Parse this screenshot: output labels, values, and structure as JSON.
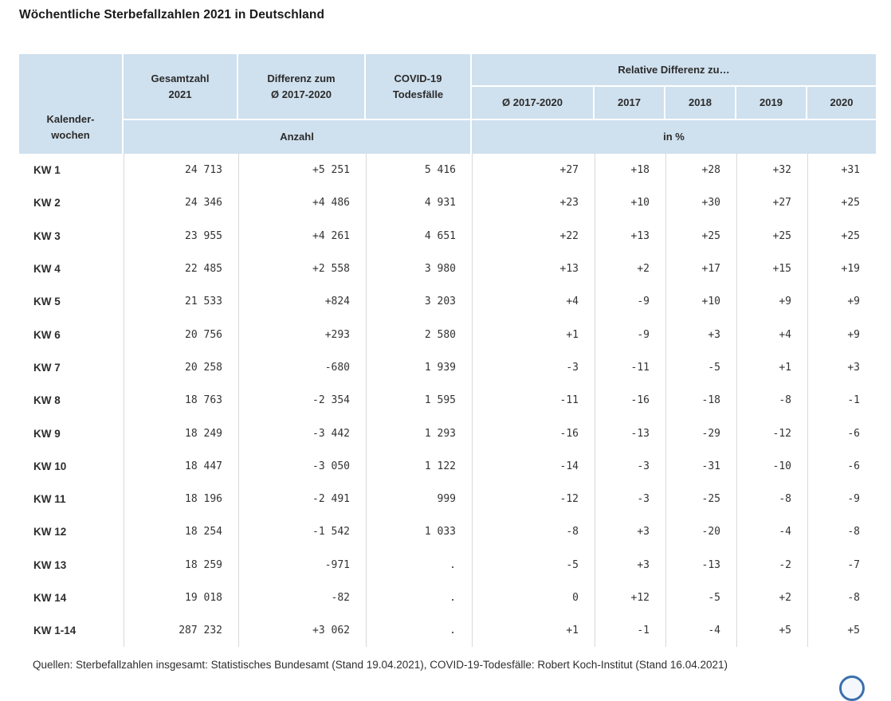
{
  "title": "Wöchentliche Sterbefallzahlen 2021 in Deutschland",
  "colors": {
    "header_bg": "#cfe0ee",
    "body_divider": "#d9d9d9",
    "text": "#333333",
    "fab_blue": "#3a70ad"
  },
  "table": {
    "header": {
      "kalenderwochen": [
        "Kalender-",
        "wochen"
      ],
      "gesamtzahl": [
        "Gesamtzahl",
        "2021"
      ],
      "differenz": [
        "Differenz zum",
        "Ø 2017-2020"
      ],
      "covid": [
        "COVID-19",
        "Todesfälle"
      ],
      "relative": "Relative Differenz zu…",
      "years": [
        "Ø 2017-2020",
        "2017",
        "2018",
        "2019",
        "2020"
      ],
      "anzahl": "Anzahl",
      "in_percent": "in %"
    },
    "rows": [
      {
        "label": "KW 1",
        "cells": [
          "24 713",
          "+5 251",
          "5 416",
          "+27",
          "+18",
          "+28",
          "+32",
          "+31"
        ]
      },
      {
        "label": "KW 2",
        "cells": [
          "24 346",
          "+4 486",
          "4 931",
          "+23",
          "+10",
          "+30",
          "+27",
          "+25"
        ]
      },
      {
        "label": "KW 3",
        "cells": [
          "23 955",
          "+4 261",
          "4 651",
          "+22",
          "+13",
          "+25",
          "+25",
          "+25"
        ]
      },
      {
        "label": "KW 4",
        "cells": [
          "22 485",
          "+2 558",
          "3 980",
          "+13",
          "+2",
          "+17",
          "+15",
          "+19"
        ]
      },
      {
        "label": "KW 5",
        "cells": [
          "21 533",
          "+824",
          "3 203",
          "+4",
          "-9",
          "+10",
          "+9",
          "+9"
        ]
      },
      {
        "label": "KW 6",
        "cells": [
          "20 756",
          "+293",
          "2 580",
          "+1",
          "-9",
          "+3",
          "+4",
          "+9"
        ]
      },
      {
        "label": "KW 7",
        "cells": [
          "20 258",
          "-680",
          "1 939",
          "-3",
          "-11",
          "-5",
          "+1",
          "+3"
        ]
      },
      {
        "label": "KW 8",
        "cells": [
          "18 763",
          "-2 354",
          "1 595",
          "-11",
          "-16",
          "-18",
          "-8",
          "-1"
        ]
      },
      {
        "label": "KW 9",
        "cells": [
          "18 249",
          "-3 442",
          "1 293",
          "-16",
          "-13",
          "-29",
          "-12",
          "-6"
        ]
      },
      {
        "label": "KW 10",
        "cells": [
          "18 447",
          "-3 050",
          "1 122",
          "-14",
          "-3",
          "-31",
          "-10",
          "-6"
        ]
      },
      {
        "label": "KW 11",
        "cells": [
          "18 196",
          "-2 491",
          "999",
          "-12",
          "-3",
          "-25",
          "-8",
          "-9"
        ]
      },
      {
        "label": "KW 12",
        "cells": [
          "18 254",
          "-1 542",
          "1 033",
          "-8",
          "+3",
          "-20",
          "-4",
          "-8"
        ]
      },
      {
        "label": "KW 13",
        "cells": [
          "18 259",
          "-971",
          ".",
          "-5",
          "+3",
          "-13",
          "-2",
          "-7"
        ]
      },
      {
        "label": "KW 14",
        "cells": [
          "19 018",
          "-82",
          ".",
          "0",
          "+12",
          "-5",
          "+2",
          "-8"
        ]
      },
      {
        "label": "KW 1-14",
        "cells": [
          "287 232",
          "+3 062",
          ".",
          "+1",
          "-1",
          "-4",
          "+5",
          "+5"
        ]
      }
    ]
  },
  "source_note": "Quellen: Sterbefallzahlen insgesamt: Statistisches Bundesamt (Stand 19.04.2021), COVID-19-Todesfälle: Robert Koch-Institut (Stand 16.04.2021)",
  "chart_data": {
    "type": "table",
    "title": "Wöchentliche Sterbefallzahlen 2021 in Deutschland",
    "columns": [
      "Kalenderwochen",
      "Gesamtzahl 2021 (Anzahl)",
      "Differenz zum Ø 2017-2020 (Anzahl)",
      "COVID-19 Todesfälle (Anzahl)",
      "Relative Differenz zu Ø 2017-2020 (in %)",
      "Relative Differenz zu 2017 (in %)",
      "Relative Differenz zu 2018 (in %)",
      "Relative Differenz zu 2019 (in %)",
      "Relative Differenz zu 2020 (in %)"
    ],
    "rows": [
      [
        "KW 1",
        24713,
        5251,
        5416,
        27,
        18,
        28,
        32,
        31
      ],
      [
        "KW 2",
        24346,
        4486,
        4931,
        23,
        10,
        30,
        27,
        25
      ],
      [
        "KW 3",
        23955,
        4261,
        4651,
        22,
        13,
        25,
        25,
        25
      ],
      [
        "KW 4",
        22485,
        2558,
        3980,
        13,
        2,
        17,
        15,
        19
      ],
      [
        "KW 5",
        21533,
        824,
        3203,
        4,
        -9,
        10,
        9,
        9
      ],
      [
        "KW 6",
        20756,
        293,
        2580,
        1,
        -9,
        3,
        4,
        9
      ],
      [
        "KW 7",
        20258,
        -680,
        1939,
        -3,
        -11,
        -5,
        1,
        3
      ],
      [
        "KW 8",
        18763,
        -2354,
        1595,
        -11,
        -16,
        -18,
        -8,
        -1
      ],
      [
        "KW 9",
        18249,
        -3442,
        1293,
        -16,
        -13,
        -29,
        -12,
        -6
      ],
      [
        "KW 10",
        18447,
        -3050,
        1122,
        -14,
        -3,
        -31,
        -10,
        -6
      ],
      [
        "KW 11",
        18196,
        -2491,
        999,
        -12,
        -3,
        -25,
        -8,
        -9
      ],
      [
        "KW 12",
        18254,
        -1542,
        1033,
        -8,
        3,
        -20,
        -4,
        -8
      ],
      [
        "KW 13",
        18259,
        -971,
        ".",
        -5,
        3,
        -13,
        -2,
        -7
      ],
      [
        "KW 14",
        19018,
        -82,
        ".",
        0,
        12,
        -5,
        2,
        -8
      ],
      [
        "KW 1-14",
        287232,
        3062,
        ".",
        1,
        -1,
        -4,
        5,
        5
      ]
    ]
  }
}
